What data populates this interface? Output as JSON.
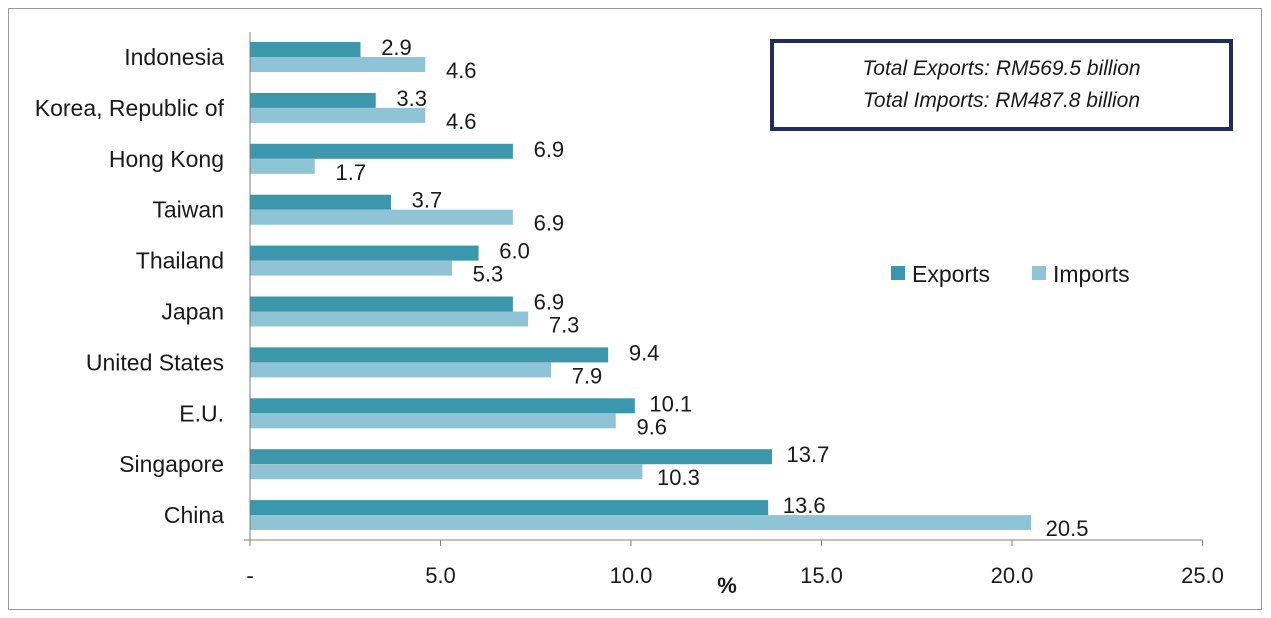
{
  "chart_data": {
    "type": "bar",
    "orientation": "horizontal",
    "categories": [
      "Indonesia",
      "Korea, Republic of",
      "Hong Kong",
      "Taiwan",
      "Thailand",
      "Japan",
      "United States",
      "E.U.",
      "Singapore",
      "China"
    ],
    "series": [
      {
        "name": "Exports",
        "color": "#3a97ac",
        "values": [
          2.9,
          3.3,
          6.9,
          3.7,
          6.0,
          6.9,
          9.4,
          10.1,
          13.7,
          13.6
        ]
      },
      {
        "name": "Imports",
        "color": "#8fc3d6",
        "values": [
          4.6,
          4.6,
          1.7,
          6.9,
          5.3,
          7.3,
          7.9,
          9.6,
          10.3,
          20.5
        ]
      }
    ],
    "value_labels": {
      "Exports": [
        "2.9",
        "3.3",
        "6.9",
        "3.7",
        "6.0",
        "6.9",
        "9.4",
        "10.1",
        "13.7",
        "13.6"
      ],
      "Imports": [
        "4.6",
        "4.6",
        "1.7",
        "6.9",
        "5.3",
        "7.3",
        "7.9",
        "9.6",
        "10.3",
        "20.5"
      ]
    },
    "xlim": [
      0,
      25
    ],
    "xticks": [
      0,
      5,
      10,
      15,
      20,
      25
    ],
    "xtick_labels": [
      "-",
      "5.0",
      "10.0",
      "15.0",
      "20.0",
      "25.0"
    ],
    "xlabel": "%",
    "ylabel": "",
    "title": "",
    "grid": false,
    "legend_position": "right"
  },
  "totals": {
    "exports": "Total Exports: RM569.5 billion",
    "imports": "Total Imports: RM487.8 billion"
  }
}
